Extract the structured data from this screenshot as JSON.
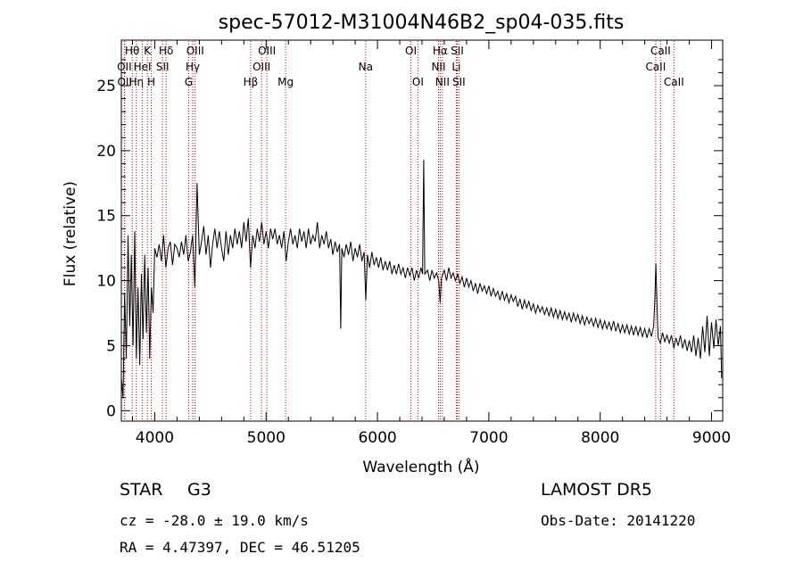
{
  "chart_data": {
    "type": "line",
    "title": "spec-57012-M31004N46B2_sp04-035.fits",
    "xlabel": "Wavelength (Å)",
    "ylabel": "Flux (relative)",
    "xlim": [
      3700,
      9100
    ],
    "ylim": [
      -0.8,
      28.5
    ],
    "xticks": [
      4000,
      5000,
      6000,
      7000,
      8000,
      9000
    ],
    "yticks": [
      0,
      5,
      10,
      15,
      20,
      25
    ],
    "series": [
      {
        "color": "#000000",
        "points": [
          [
            3700,
            2.5
          ],
          [
            3715,
            1.0
          ],
          [
            3730,
            9.0
          ],
          [
            3745,
            4.0
          ],
          [
            3760,
            13.5
          ],
          [
            3775,
            6.5
          ],
          [
            3790,
            12.0
          ],
          [
            3805,
            5.0
          ],
          [
            3820,
            13.8
          ],
          [
            3835,
            4.0
          ],
          [
            3850,
            9.5
          ],
          [
            3865,
            3.5
          ],
          [
            3880,
            10.5
          ],
          [
            3895,
            5.5
          ],
          [
            3910,
            12.0
          ],
          [
            3925,
            6.0
          ],
          [
            3940,
            11.0
          ],
          [
            3955,
            4.0
          ],
          [
            3970,
            9.5
          ],
          [
            3985,
            7.5
          ],
          [
            4000,
            12.5
          ],
          [
            4020,
            11.8
          ],
          [
            4040,
            12.8
          ],
          [
            4060,
            11.5
          ],
          [
            4080,
            13.5
          ],
          [
            4100,
            11.0
          ],
          [
            4120,
            12.5
          ],
          [
            4140,
            13.0
          ],
          [
            4160,
            11.2
          ],
          [
            4180,
            12.8
          ],
          [
            4200,
            12.5
          ],
          [
            4220,
            11.8
          ],
          [
            4240,
            13.0
          ],
          [
            4260,
            12.0
          ],
          [
            4280,
            13.5
          ],
          [
            4300,
            11.5
          ],
          [
            4320,
            12.2
          ],
          [
            4340,
            13.5
          ],
          [
            4360,
            9.5
          ],
          [
            4380,
            17.5
          ],
          [
            4400,
            12.0
          ],
          [
            4420,
            13.0
          ],
          [
            4440,
            14.2
          ],
          [
            4460,
            12.0
          ],
          [
            4480,
            13.5
          ],
          [
            4500,
            11.0
          ],
          [
            4520,
            12.8
          ],
          [
            4540,
            14.0
          ],
          [
            4560,
            12.5
          ],
          [
            4580,
            13.8
          ],
          [
            4600,
            12.5
          ],
          [
            4620,
            11.5
          ],
          [
            4640,
            13.8
          ],
          [
            4660,
            12.0
          ],
          [
            4680,
            13.5
          ],
          [
            4700,
            12.5
          ],
          [
            4720,
            14.0
          ],
          [
            4740,
            12.8
          ],
          [
            4760,
            13.8
          ],
          [
            4780,
            12.5
          ],
          [
            4800,
            14.5
          ],
          [
            4820,
            13.0
          ],
          [
            4840,
            14.8
          ],
          [
            4860,
            11.0
          ],
          [
            4880,
            13.5
          ],
          [
            4900,
            12.5
          ],
          [
            4920,
            14.0
          ],
          [
            4940,
            13.0
          ],
          [
            4960,
            14.5
          ],
          [
            4980,
            12.8
          ],
          [
            5000,
            13.8
          ],
          [
            5020,
            12.5
          ],
          [
            5040,
            14.0
          ],
          [
            5060,
            13.2
          ],
          [
            5080,
            14.0
          ],
          [
            5100,
            12.8
          ],
          [
            5120,
            13.5
          ],
          [
            5140,
            12.5
          ],
          [
            5160,
            13.8
          ],
          [
            5180,
            11.5
          ],
          [
            5200,
            13.0
          ],
          [
            5220,
            14.0
          ],
          [
            5240,
            12.8
          ],
          [
            5260,
            13.5
          ],
          [
            5280,
            12.5
          ],
          [
            5300,
            14.0
          ],
          [
            5320,
            13.0
          ],
          [
            5340,
            13.8
          ],
          [
            5360,
            12.5
          ],
          [
            5380,
            14.0
          ],
          [
            5400,
            12.8
          ],
          [
            5420,
            13.5
          ],
          [
            5440,
            13.0
          ],
          [
            5460,
            14.5
          ],
          [
            5480,
            12.5
          ],
          [
            5500,
            13.5
          ],
          [
            5520,
            12.8
          ],
          [
            5540,
            13.8
          ],
          [
            5560,
            12.5
          ],
          [
            5580,
            13.2
          ],
          [
            5600,
            12.0
          ],
          [
            5620,
            13.0
          ],
          [
            5640,
            12.2
          ],
          [
            5660,
            12.8
          ],
          [
            5670,
            6.3
          ],
          [
            5680,
            12.5
          ],
          [
            5700,
            11.8
          ],
          [
            5720,
            12.8
          ],
          [
            5740,
            12.0
          ],
          [
            5760,
            13.0
          ],
          [
            5780,
            11.5
          ],
          [
            5800,
            12.5
          ],
          [
            5820,
            11.8
          ],
          [
            5840,
            12.8
          ],
          [
            5860,
            11.5
          ],
          [
            5880,
            12.2
          ],
          [
            5895,
            8.5
          ],
          [
            5910,
            12.0
          ],
          [
            5930,
            11.0
          ],
          [
            5950,
            12.2
          ],
          [
            5970,
            11.2
          ],
          [
            5990,
            11.8
          ],
          [
            6010,
            11.0
          ],
          [
            6030,
            11.8
          ],
          [
            6050,
            10.8
          ],
          [
            6070,
            11.5
          ],
          [
            6090,
            10.8
          ],
          [
            6110,
            11.5
          ],
          [
            6130,
            10.5
          ],
          [
            6150,
            11.2
          ],
          [
            6170,
            10.5
          ],
          [
            6190,
            11.3
          ],
          [
            6210,
            10.5
          ],
          [
            6230,
            11.0
          ],
          [
            6250,
            10.2
          ],
          [
            6270,
            11.0
          ],
          [
            6290,
            10.4
          ],
          [
            6310,
            11.0
          ],
          [
            6330,
            10.0
          ],
          [
            6350,
            10.8
          ],
          [
            6370,
            10.2
          ],
          [
            6390,
            11.0
          ],
          [
            6405,
            10.5
          ],
          [
            6415,
            19.3
          ],
          [
            6425,
            10.5
          ],
          [
            6450,
            10.8
          ],
          [
            6470,
            10.0
          ],
          [
            6490,
            10.8
          ],
          [
            6510,
            10.2
          ],
          [
            6530,
            10.6
          ],
          [
            6550,
            10.0
          ],
          [
            6563,
            8.3
          ],
          [
            6575,
            10.2
          ],
          [
            6600,
            10.8
          ],
          [
            6620,
            10.0
          ],
          [
            6640,
            11.0
          ],
          [
            6660,
            10.2
          ],
          [
            6680,
            10.6
          ],
          [
            6700,
            10.0
          ],
          [
            6720,
            10.5
          ],
          [
            6740,
            9.8
          ],
          [
            6760,
            10.3
          ],
          [
            6780,
            9.5
          ],
          [
            6800,
            10.2
          ],
          [
            6820,
            9.5
          ],
          [
            6840,
            10.0
          ],
          [
            6860,
            9.2
          ],
          [
            6880,
            9.8
          ],
          [
            6900,
            9.0
          ],
          [
            6920,
            9.8
          ],
          [
            6940,
            9.2
          ],
          [
            6960,
            9.6
          ],
          [
            6980,
            9.0
          ],
          [
            7000,
            9.6
          ],
          [
            7020,
            8.8
          ],
          [
            7040,
            9.4
          ],
          [
            7060,
            8.8
          ],
          [
            7080,
            9.2
          ],
          [
            7100,
            8.5
          ],
          [
            7120,
            9.2
          ],
          [
            7140,
            8.5
          ],
          [
            7160,
            9.0
          ],
          [
            7180,
            8.3
          ],
          [
            7200,
            8.9
          ],
          [
            7220,
            8.4
          ],
          [
            7240,
            8.8
          ],
          [
            7260,
            8.0
          ],
          [
            7280,
            8.6
          ],
          [
            7300,
            7.8
          ],
          [
            7320,
            8.5
          ],
          [
            7340,
            7.9
          ],
          [
            7360,
            8.4
          ],
          [
            7380,
            7.7
          ],
          [
            7400,
            8.2
          ],
          [
            7420,
            7.5
          ],
          [
            7440,
            8.1
          ],
          [
            7460,
            7.6
          ],
          [
            7480,
            8.0
          ],
          [
            7500,
            7.4
          ],
          [
            7520,
            7.9
          ],
          [
            7540,
            7.3
          ],
          [
            7560,
            7.9
          ],
          [
            7580,
            7.2
          ],
          [
            7600,
            7.8
          ],
          [
            7620,
            7.1
          ],
          [
            7640,
            7.7
          ],
          [
            7660,
            7.0
          ],
          [
            7680,
            7.6
          ],
          [
            7700,
            7.0
          ],
          [
            7720,
            7.5
          ],
          [
            7740,
            6.8
          ],
          [
            7760,
            7.5
          ],
          [
            7780,
            6.9
          ],
          [
            7800,
            7.4
          ],
          [
            7820,
            6.7
          ],
          [
            7840,
            7.3
          ],
          [
            7860,
            6.6
          ],
          [
            7880,
            7.2
          ],
          [
            7900,
            6.7
          ],
          [
            7920,
            7.1
          ],
          [
            7940,
            6.5
          ],
          [
            7960,
            7.1
          ],
          [
            7980,
            6.4
          ],
          [
            8000,
            7.0
          ],
          [
            8020,
            6.3
          ],
          [
            8040,
            6.9
          ],
          [
            8060,
            6.3
          ],
          [
            8080,
            6.8
          ],
          [
            8100,
            6.2
          ],
          [
            8120,
            6.9
          ],
          [
            8140,
            6.1
          ],
          [
            8160,
            6.7
          ],
          [
            8180,
            6.0
          ],
          [
            8200,
            6.6
          ],
          [
            8220,
            6.0
          ],
          [
            8240,
            6.6
          ],
          [
            8260,
            5.9
          ],
          [
            8280,
            6.5
          ],
          [
            8300,
            5.8
          ],
          [
            8320,
            6.5
          ],
          [
            8340,
            5.8
          ],
          [
            8360,
            6.4
          ],
          [
            8380,
            5.7
          ],
          [
            8400,
            6.3
          ],
          [
            8420,
            5.6
          ],
          [
            8440,
            6.3
          ],
          [
            8460,
            5.7
          ],
          [
            8480,
            6.5
          ],
          [
            8490,
            8.5
          ],
          [
            8500,
            11.3
          ],
          [
            8510,
            8.0
          ],
          [
            8520,
            5.6
          ],
          [
            8540,
            5.2
          ],
          [
            8560,
            6.0
          ],
          [
            8580,
            5.3
          ],
          [
            8600,
            5.8
          ],
          [
            8620,
            5.2
          ],
          [
            8640,
            5.8
          ],
          [
            8662,
            4.8
          ],
          [
            8680,
            5.6
          ],
          [
            8700,
            5.0
          ],
          [
            8720,
            5.8
          ],
          [
            8740,
            4.8
          ],
          [
            8760,
            5.5
          ],
          [
            8780,
            4.6
          ],
          [
            8800,
            5.4
          ],
          [
            8820,
            4.5
          ],
          [
            8840,
            5.8
          ],
          [
            8860,
            4.2
          ],
          [
            8880,
            5.6
          ],
          [
            8900,
            4.0
          ],
          [
            8920,
            6.5
          ],
          [
            8940,
            4.5
          ],
          [
            8960,
            7.3
          ],
          [
            8980,
            4.2
          ],
          [
            9000,
            6.8
          ],
          [
            9020,
            4.8
          ],
          [
            9040,
            7.0
          ],
          [
            9060,
            5.0
          ],
          [
            9080,
            6.5
          ],
          [
            9090,
            2.5
          ]
        ]
      }
    ],
    "line_color": "#cc0000",
    "spectral_lines": [
      {
        "name": "Hθ",
        "wave": 3798,
        "row": 1
      },
      {
        "name": "OII",
        "wave": 3727,
        "row": 2
      },
      {
        "name": "OII",
        "wave": 3730,
        "row": 3
      },
      {
        "name": "Hη",
        "wave": 3835,
        "row": 3
      },
      {
        "name": "HeI",
        "wave": 3889,
        "row": 2
      },
      {
        "name": "K",
        "wave": 3934,
        "row": 1
      },
      {
        "name": "H",
        "wave": 3969,
        "row": 3
      },
      {
        "name": "SII",
        "wave": 4070,
        "row": 2
      },
      {
        "name": "Hδ",
        "wave": 4102,
        "row": 1
      },
      {
        "name": "G",
        "wave": 4305,
        "row": 3
      },
      {
        "name": "Hγ",
        "wave": 4341,
        "row": 2
      },
      {
        "name": "OIII",
        "wave": 4363,
        "row": 1
      },
      {
        "name": "Hβ",
        "wave": 4861,
        "row": 3
      },
      {
        "name": "OIII",
        "wave": 4959,
        "row": 2
      },
      {
        "name": "OIII",
        "wave": 5007,
        "row": 1
      },
      {
        "name": "Mg",
        "wave": 5175,
        "row": 3
      },
      {
        "name": "Na",
        "wave": 5894,
        "row": 2
      },
      {
        "name": "OI",
        "wave": 6300,
        "row": 1
      },
      {
        "name": "OI",
        "wave": 6363,
        "row": 3
      },
      {
        "name": "NII",
        "wave": 6548,
        "row": 2
      },
      {
        "name": "Hα",
        "wave": 6563,
        "row": 1
      },
      {
        "name": "NII",
        "wave": 6583,
        "row": 3
      },
      {
        "name": "Li",
        "wave": 6708,
        "row": 2
      },
      {
        "name": "SII",
        "wave": 6716,
        "row": 1
      },
      {
        "name": "SII",
        "wave": 6731,
        "row": 3
      },
      {
        "name": "CaII",
        "wave": 8498,
        "row": 2
      },
      {
        "name": "CaII",
        "wave": 8542,
        "row": 1
      },
      {
        "name": "CaII",
        "wave": 8662,
        "row": 3
      }
    ]
  },
  "info": {
    "class_label": "STAR",
    "subclass": "G3",
    "survey": "LAMOST DR5",
    "redshift_line": "cz = -28.0 ± 19.0 km/s",
    "obs_date": "Obs-Date: 20141220",
    "coords": "RA =   4.47397, DEC =  46.51205"
  }
}
